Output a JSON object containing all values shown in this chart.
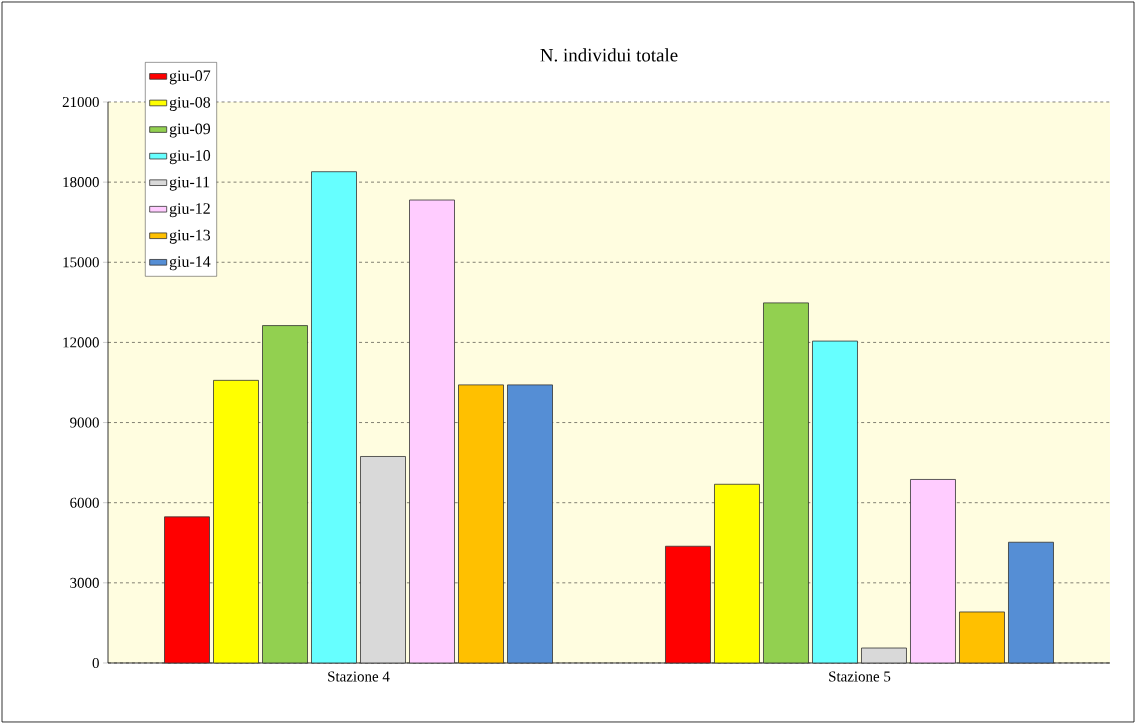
{
  "chart_data": {
    "type": "bar",
    "title": "N. individui totale",
    "categories": [
      "Stazione 4",
      "Stazione 5"
    ],
    "series": [
      {
        "name": "giu-07",
        "color": "#ff0000",
        "values": [
          5470,
          4370
        ]
      },
      {
        "name": "giu-08",
        "color": "#ffff00",
        "values": [
          10580,
          6690
        ]
      },
      {
        "name": "giu-09",
        "color": "#92d050",
        "values": [
          12630,
          13480
        ]
      },
      {
        "name": "giu-10",
        "color": "#66ffff",
        "values": [
          18390,
          12050
        ]
      },
      {
        "name": "giu-11",
        "color": "#d9d9d9",
        "values": [
          7730,
          560
        ]
      },
      {
        "name": "giu-12",
        "color": "#ffccff",
        "values": [
          17330,
          6870
        ]
      },
      {
        "name": "giu-13",
        "color": "#ffc000",
        "values": [
          10410,
          1910
        ]
      },
      {
        "name": "giu-14",
        "color": "#558ed5",
        "values": [
          10410,
          4520
        ]
      }
    ],
    "ylim": [
      0,
      21000
    ],
    "yticks": [
      0,
      3000,
      6000,
      9000,
      12000,
      15000,
      18000,
      21000
    ],
    "grid": "y",
    "legend": "top left"
  }
}
